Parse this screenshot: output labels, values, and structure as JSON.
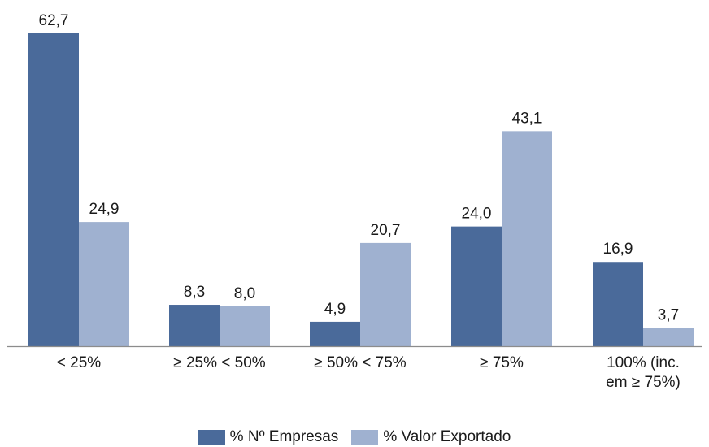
{
  "chart_data": {
    "type": "bar",
    "categories": [
      "< 25%",
      "≥ 25% < 50%",
      "≥ 50% < 75%",
      "≥ 75%",
      "100% (inc.|em ≥ 75%)"
    ],
    "series": [
      {
        "name": "% Nº Empresas",
        "values": [
          62.7,
          8.3,
          4.9,
          24.0,
          16.9
        ],
        "labels": [
          "62,7",
          "8,3",
          "4,9",
          "24,0",
          "16,9"
        ],
        "color": "#4a6a9a"
      },
      {
        "name": "% Valor Exportado",
        "values": [
          24.9,
          8.0,
          20.7,
          43.1,
          3.7
        ],
        "labels": [
          "24,9",
          "8,0",
          "20,7",
          "43,1",
          "3,7"
        ],
        "color": "#9fb1d0"
      }
    ],
    "ylim": [
      0,
      70
    ],
    "legend_position": "bottom"
  }
}
